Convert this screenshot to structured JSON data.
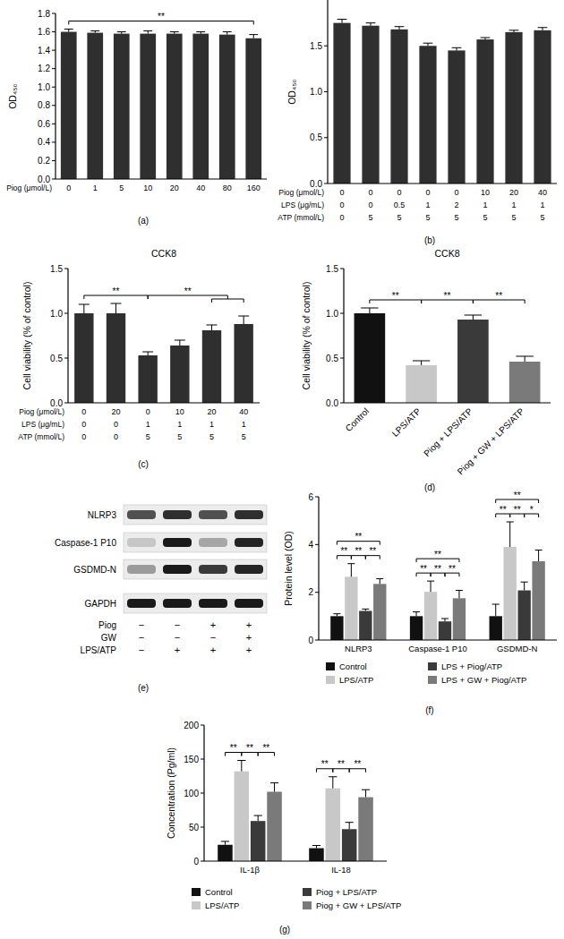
{
  "chart_data": [
    {
      "type": "bar",
      "label": "(a)",
      "y_label": "OD₄₅₀",
      "color": "#2f2f2f",
      "condition_rows": [
        {
          "label": "Piog (μmol/L)",
          "values": [
            0,
            1,
            5,
            10,
            20,
            40,
            80,
            160
          ]
        }
      ],
      "values": [
        1.6,
        1.59,
        1.58,
        1.58,
        1.58,
        1.58,
        1.57,
        1.53
      ],
      "errors": [
        0.03,
        0.02,
        0.02,
        0.03,
        0.02,
        0.02,
        0.03,
        0.04
      ],
      "ylim": [
        0,
        1.8
      ],
      "yticks": [
        {
          "value": 0,
          "label": "0.0"
        },
        0.2,
        0.4,
        0.6,
        0.8,
        {
          "value": 1,
          "label": "1.0"
        },
        1.2,
        1.4,
        1.6,
        1.8
      ],
      "significance": [
        {
          "from": 0,
          "to": 7,
          "label": "**"
        }
      ]
    },
    {
      "type": "bar",
      "label": "(b)",
      "y_label": "OD₄₅₀",
      "color": "#2f2f2f",
      "condition_rows": [
        {
          "label": "Piog (μmol/L)",
          "values": [
            0,
            0,
            0,
            0,
            0,
            10,
            20,
            40
          ]
        },
        {
          "label": "LPS (μg/mL)",
          "values": [
            0,
            0,
            0.5,
            1,
            2,
            1,
            1,
            1
          ]
        },
        {
          "label": "ATP (mmol/L)",
          "values": [
            0,
            5,
            5,
            5,
            5,
            5,
            5,
            5
          ]
        }
      ],
      "values": [
        1.75,
        1.72,
        1.68,
        1.5,
        1.45,
        1.57,
        1.65,
        1.67
      ],
      "errors": [
        0.04,
        0.03,
        0.03,
        0.03,
        0.03,
        0.02,
        0.02,
        0.03
      ],
      "ylim": [
        0,
        2
      ],
      "yticks": [
        {
          "value": 0,
          "label": "0.0"
        },
        0.5,
        {
          "value": 1,
          "label": "1.0"
        },
        1.5
      ]
    },
    {
      "type": "bar",
      "label": "(c)",
      "title": "CCK8",
      "y_label": "Cell viability (% of control)",
      "color": "#2f2f2f",
      "condition_rows": [
        {
          "label": "Piog (μmol/L)",
          "values": [
            0,
            20,
            0,
            10,
            20,
            40
          ]
        },
        {
          "label": "LPS (μg/mL)",
          "values": [
            0,
            0,
            1,
            1,
            1,
            1
          ]
        },
        {
          "label": "ATP (mmol/L)",
          "values": [
            0,
            0,
            5,
            5,
            5,
            5
          ]
        }
      ],
      "values": [
        1.0,
        1.0,
        0.53,
        0.64,
        0.81,
        0.88
      ],
      "errors": [
        0.1,
        0.11,
        0.04,
        0.06,
        0.06,
        0.09
      ],
      "ylim": [
        0,
        1.5
      ],
      "yticks": [
        {
          "value": 0,
          "label": "0.0"
        },
        0.5,
        {
          "value": 1,
          "label": "1.0"
        },
        1.5
      ],
      "significance": [
        {
          "from": 0,
          "to": 2,
          "label": "**"
        },
        {
          "from": 2,
          "to": [
            4,
            5
          ],
          "label": "**"
        }
      ]
    },
    {
      "type": "bar",
      "label": "(d)",
      "title": "CCK8",
      "y_label": "Cell viability (% of control)",
      "categories": [
        "Control",
        "LPS/ATP",
        "Piog + LPS/ATP",
        "Piog + GW + LPS/ATP"
      ],
      "colors": [
        "#111111",
        "#c8c8c8",
        "#3a3a3a",
        "#7a7a7a"
      ],
      "values": [
        1.0,
        0.42,
        0.93,
        0.46
      ],
      "errors": [
        0.06,
        0.05,
        0.05,
        0.06
      ],
      "ylim": [
        0,
        1.5
      ],
      "yticks": [
        {
          "value": 0,
          "label": "0.0"
        },
        0.5,
        {
          "value": 1,
          "label": "1.0"
        },
        1.5
      ],
      "significance": [
        {
          "from": 0,
          "to": 1,
          "label": "**"
        },
        {
          "from": 1,
          "to": 2,
          "label": "**"
        },
        {
          "from": 2,
          "to": 3,
          "label": "**"
        }
      ]
    },
    {
      "type": "bar",
      "label": "(f)",
      "y_label": "Protein level (OD)",
      "categories": [
        "NLRP3",
        "Caspase-1 P10",
        "GSDMD-N"
      ],
      "series": [
        {
          "name": "Control",
          "color": "#111111",
          "values": [
            1.0,
            1.0,
            1.0
          ],
          "errors": [
            0.1,
            0.18,
            0.5
          ]
        },
        {
          "name": "LPS/ATP",
          "color": "#c8c8c8",
          "values": [
            2.65,
            2.02,
            3.9
          ],
          "errors": [
            0.55,
            0.45,
            1.05
          ]
        },
        {
          "name": "LPS + Piog/ATP",
          "color": "#3a3a3a",
          "values": [
            1.22,
            0.78,
            2.08
          ],
          "errors": [
            0.08,
            0.12,
            0.35
          ]
        },
        {
          "name": "LPS + GW + Piog/ATP",
          "color": "#7a7a7a",
          "values": [
            2.35,
            1.75,
            3.3
          ],
          "errors": [
            0.22,
            0.33,
            0.47
          ]
        }
      ],
      "ylim": [
        0,
        6
      ],
      "yticks": [
        0,
        2,
        4,
        6
      ],
      "legend": "bottom",
      "significance": [
        {
          "group": 0,
          "from": 0,
          "to": 1,
          "label": "**"
        },
        {
          "group": 0,
          "from": 1,
          "to": 2,
          "label": "**"
        },
        {
          "group": 0,
          "from": 2,
          "to": 3,
          "label": "**"
        },
        {
          "group": 0,
          "from": 0,
          "to": 3,
          "label": "**"
        },
        {
          "group": 1,
          "from": 0,
          "to": 1,
          "label": "**"
        },
        {
          "group": 1,
          "from": 1,
          "to": 2,
          "label": "**"
        },
        {
          "group": 1,
          "from": 2,
          "to": 3,
          "label": "**"
        },
        {
          "group": 1,
          "from": 0,
          "to": 3,
          "label": "**"
        },
        {
          "group": 2,
          "from": 0,
          "to": 1,
          "label": "**"
        },
        {
          "group": 2,
          "from": 1,
          "to": 2,
          "label": "**"
        },
        {
          "group": 2,
          "from": 2,
          "to": 3,
          "label": "*"
        },
        {
          "group": 2,
          "from": 0,
          "to": 3,
          "label": "**"
        }
      ]
    },
    {
      "type": "bar",
      "label": "(g)",
      "y_label": "Concentration (Pg/ml)",
      "categories": [
        "IL-1β",
        "IL-18"
      ],
      "series": [
        {
          "name": "Control",
          "color": "#111111",
          "values": [
            24,
            19
          ],
          "errors": [
            5,
            4
          ]
        },
        {
          "name": "LPS/ATP",
          "color": "#c8c8c8",
          "values": [
            132,
            107
          ],
          "errors": [
            16,
            17
          ]
        },
        {
          "name": "Piog + LPS/ATP",
          "color": "#3a3a3a",
          "values": [
            59,
            47
          ],
          "errors": [
            8,
            10
          ]
        },
        {
          "name": "Piog + GW + LPS/ATP",
          "color": "#7a7a7a",
          "values": [
            102,
            94
          ],
          "errors": [
            13,
            11
          ]
        }
      ],
      "ylim": [
        0,
        200
      ],
      "yticks": [
        0,
        50,
        100,
        150,
        200
      ],
      "legend": "bottom",
      "significance": [
        {
          "group": 0,
          "from": 0,
          "to": 1,
          "label": "**"
        },
        {
          "group": 0,
          "from": 1,
          "to": 2,
          "label": "**"
        },
        {
          "group": 0,
          "from": 2,
          "to": 3,
          "label": "**"
        },
        {
          "group": 1,
          "from": 0,
          "to": 1,
          "label": "**"
        },
        {
          "group": 1,
          "from": 1,
          "to": 2,
          "label": "**"
        },
        {
          "group": 1,
          "from": 2,
          "to": 3,
          "label": "**"
        }
      ]
    }
  ],
  "blot": {
    "label": "(e)",
    "proteins": [
      "NLRP3",
      "Caspase-1 P10",
      "GSDMD-N",
      "GAPDH"
    ],
    "intensity": [
      [
        0.7,
        0.85,
        0.7,
        0.85
      ],
      [
        0.15,
        0.95,
        0.3,
        0.9
      ],
      [
        0.35,
        0.95,
        0.8,
        0.9
      ],
      [
        0.95,
        0.95,
        0.95,
        0.95
      ]
    ],
    "conditions": [
      {
        "label": "Piog",
        "signs": [
          "−",
          "−",
          "+",
          "+"
        ]
      },
      {
        "label": "GW",
        "signs": [
          "−",
          "−",
          "−",
          "+"
        ]
      },
      {
        "label": "LPS/ATP",
        "signs": [
          "−",
          "+",
          "+",
          "+"
        ]
      }
    ]
  }
}
